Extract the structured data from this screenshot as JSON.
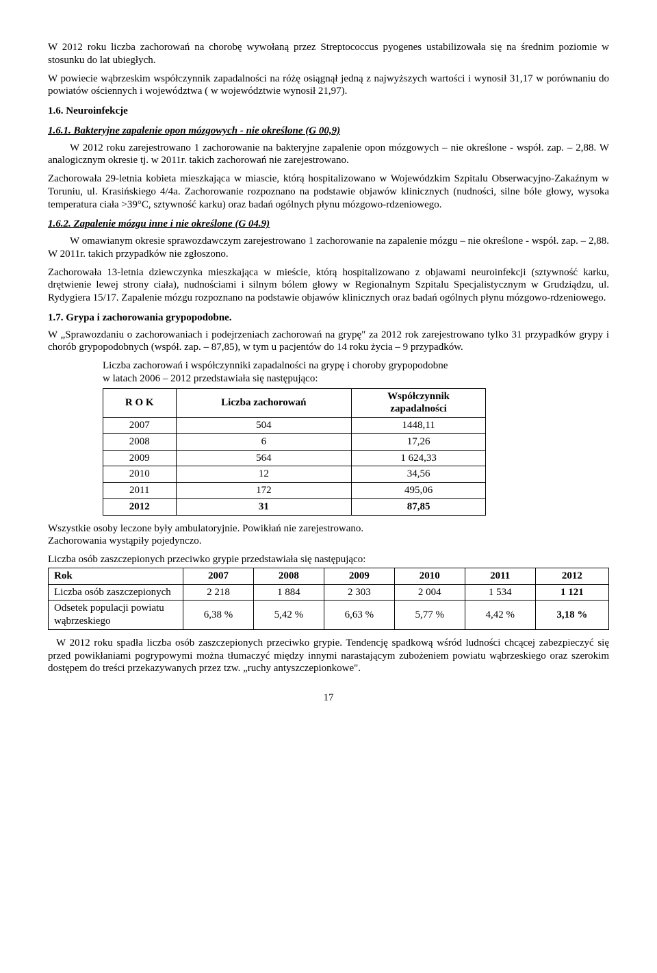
{
  "p1": "W 2012 roku liczba zachorowań na chorobę wywołaną przez Streptococcus pyogenes ustabilizowała się na średnim poziomie w stosunku do lat ubiegłych.",
  "p2": "W powiecie wąbrzeskim współczynnik zapadalności na różę osiągnął jedną z najwyższych wartości i wynosił 31,17 w porównaniu do powiatów ościennych i województwa ( w województwie wynosił 21,97).",
  "h16": "1.6.  Neuroinfekcje",
  "h161": "1.6.1.  Bakteryjne zapalenie opon mózgowych  - nie określone (G 00,9)",
  "p3": "W 2012 roku zarejestrowano 1 zachorowanie na bakteryjne zapalenie opon mózgowych – nie określone - współ. zap. – 2,88. W analogicznym okresie tj. w 2011r. takich zachorowań nie zarejestrowano.",
  "p4": "Zachorowała  29-letnia kobieta mieszkająca w miascie, którą hospitalizowano w Wojewódzkim Szpitalu Obserwacyjno-Zakaźnym w Toruniu, ul. Krasińskiego 4/4a. Zachorowanie rozpoznano na podstawie objawów klinicznych (nudności, silne bóle głowy, wysoka temperatura ciała >39°C, sztywność karku) oraz badań ogólnych płynu mózgowo-rdzeniowego.",
  "h162": "1.6.2.   Zapalenie mózgu inne i  nie określone (G 04.9)",
  "p5": "W omawianym okresie sprawozdawczym zarejestrowano 1 zachorowanie na zapalenie mózgu – nie określone - współ. zap. – 2,88.  W 2011r.  takich przypadków nie zgłoszono.",
  "p6": "Zachorowała 13-letnia dziewczynka mieszkająca w mieście, którą hospitalizowano z objawami neuroinfekcji (sztywność karku, drętwienie lewej strony ciała), nudnościami i silnym bólem głowy w Regionalnym Szpitalu Specjalistycznym w Grudziądzu, ul. Rydygiera 15/17. Zapalenie mózgu rozpoznano na podstawie objawów klinicznych oraz badań ogólnych płynu mózgowo-rdzeniowego.",
  "h17": "1.7.  Grypa i zachorowania grypopodobne.",
  "p7": "W „Sprawozdaniu o zachorowaniach i podejrzeniach zachorowań na grypę\"  za 2012 rok zarejestrowano tylko 31 przypadków grypy i chorób grypopodobnych (współ. zap. – 87,85), w tym u pacjentów do 14 roku życia – 9 przypadków.",
  "pre_t1_a": "Liczba zachorowań i współczynniki zapadalności na grypę i choroby grypopodobne",
  "pre_t1_b": "w latach 2006 – 2012 przedstawiała się następująco:",
  "t1": {
    "headers": [
      "R O K",
      "Liczba zachorowań",
      "Współczynnik zapadalności"
    ],
    "rows": [
      [
        "2007",
        "504",
        "1448,11"
      ],
      [
        "2008",
        "6",
        "17,26"
      ],
      [
        "2009",
        "564",
        "1 624,33"
      ],
      [
        "2010",
        "12",
        "34,56"
      ],
      [
        "2011",
        "172",
        "495,06"
      ],
      [
        "2012",
        "31",
        "87,85"
      ]
    ]
  },
  "p8": "Wszystkie osoby leczone były ambulatoryjnie. Powikłań nie zarejestrowano.",
  "p9": "Zachorowania wystąpiły pojedynczo.",
  "pre_t2": "Liczba osób zaszczepionych przeciwko grypie przedstawiała się następująco:",
  "t2": {
    "headers": [
      "Rok",
      "2007",
      "2008",
      "2009",
      "2010",
      "2011",
      "2012"
    ],
    "rows": [
      [
        "Liczba osób zaszczepionych",
        "2 218",
        "1 884",
        "2 303",
        "2 004",
        "1 534",
        "1 121"
      ],
      [
        "Odsetek populacji powiatu wąbrzeskiego",
        "6,38 %",
        "5,42 %",
        "6,63 %",
        "5,77 %",
        "4,42 %",
        "3,18 %"
      ]
    ],
    "bold_last": true
  },
  "p10": "W 2012 roku spadła liczba osób zaszczepionych przeciwko grypie. Tendencję spadkową wśród ludności chcącej zabezpieczyć się przed powikłaniami pogrypowymi można tłumaczyć między innymi narastającym zubożeniem powiatu wąbrzeskiego oraz szerokim dostępem do treści przekazywanych przez tzw. „ruchy antyszczepionkowe\".",
  "page_num": "17"
}
